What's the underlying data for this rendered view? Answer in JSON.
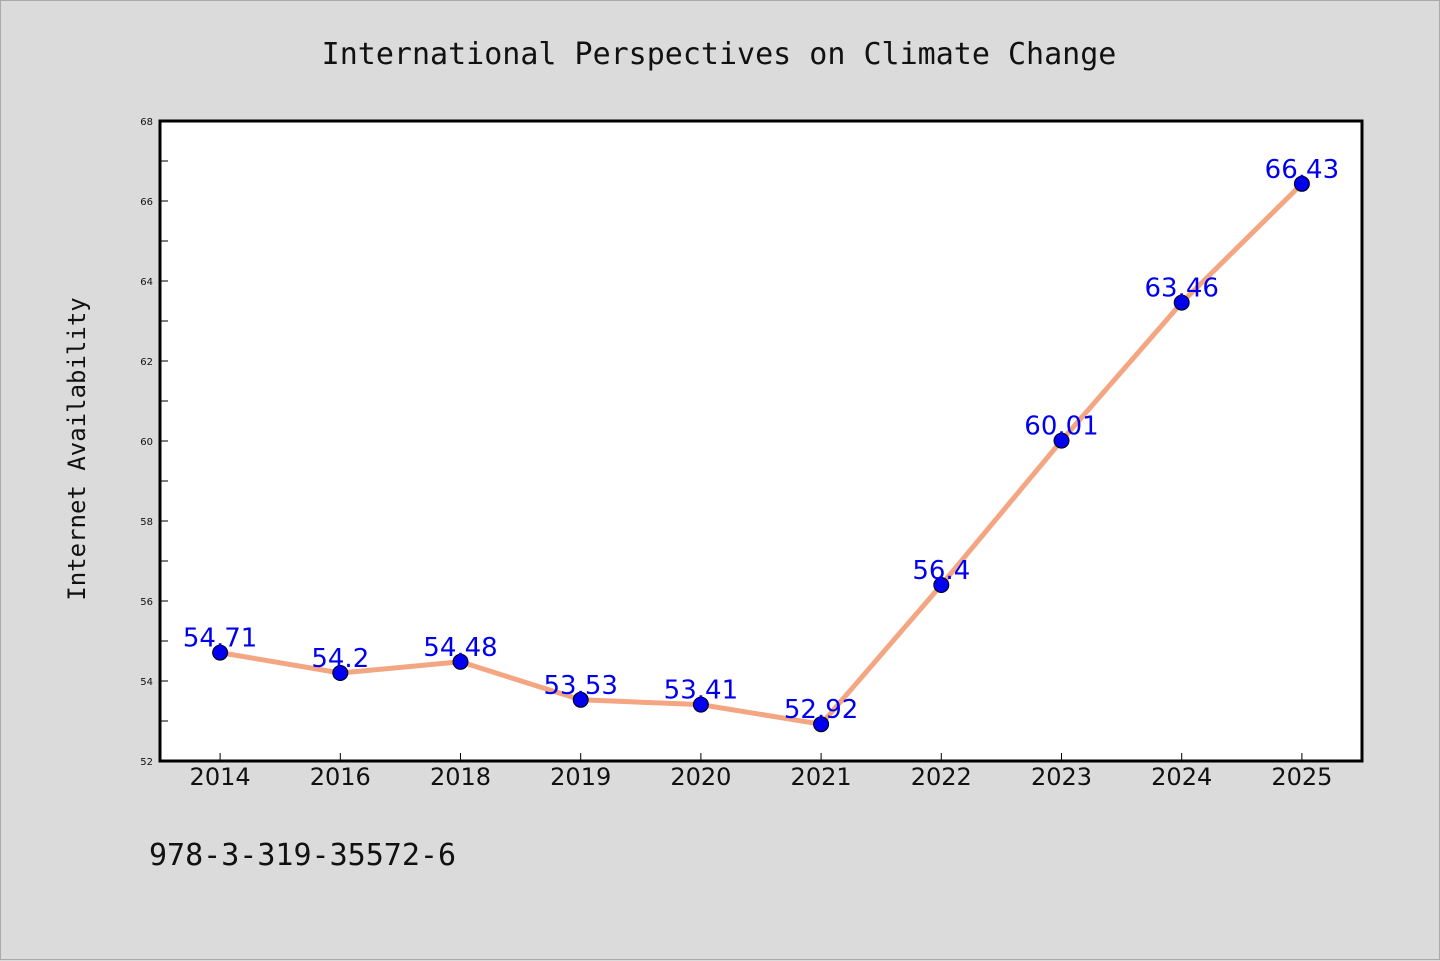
{
  "colors": {
    "background": "#dbdbdb",
    "plot_background": "#ffffff",
    "line": "#f4a582",
    "marker": "#0000ee",
    "data_label": "#0000ee",
    "axis": "#000000"
  },
  "footer": {
    "text": "978-3-319-35572-6"
  },
  "chart_data": {
    "type": "line",
    "title": "International Perspectives on Climate Change",
    "xlabel": "",
    "ylabel": "Internet Availability",
    "categories": [
      "2014",
      "2016",
      "2018",
      "2019",
      "2020",
      "2021",
      "2022",
      "2023",
      "2024",
      "2025"
    ],
    "series": [
      {
        "values": [
          54.71,
          54.2,
          54.48,
          53.53,
          53.41,
          52.92,
          56.4,
          60.01,
          63.46,
          66.43
        ],
        "labels": [
          "54.71",
          "54.2",
          "54.48",
          "53.53",
          "53.41",
          "52.92",
          "56.4",
          "60.01",
          "63.46",
          "66.43"
        ]
      }
    ],
    "ylim": [
      52,
      68
    ],
    "yticks": [
      52,
      54,
      56,
      58,
      60,
      62,
      64,
      66,
      68
    ],
    "grid": false,
    "legend": "none",
    "marker": "circle"
  }
}
